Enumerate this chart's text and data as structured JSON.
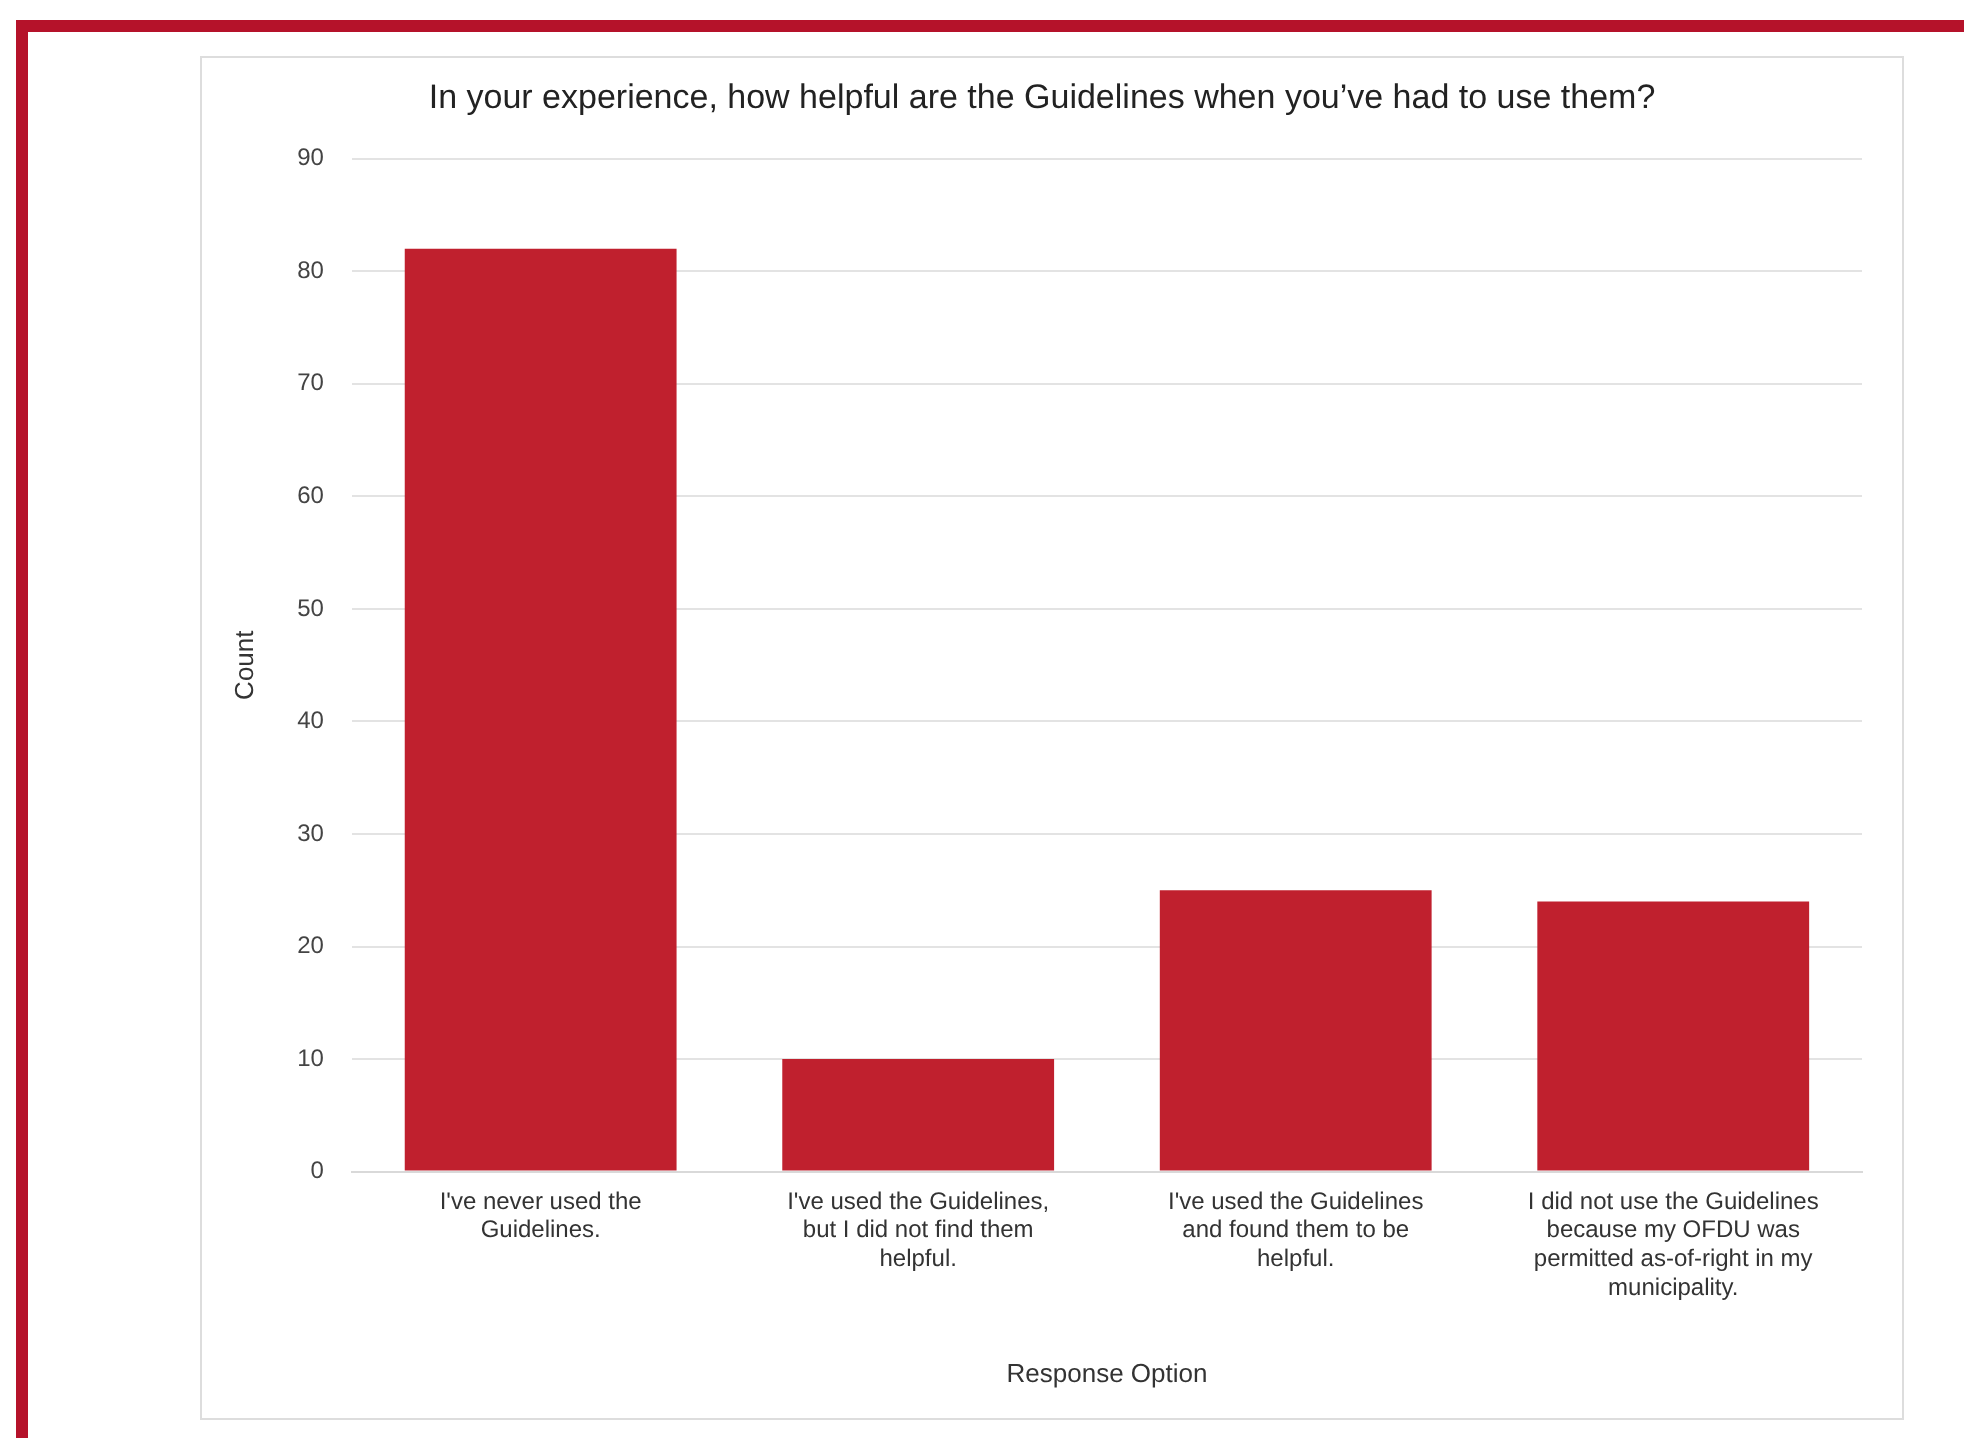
{
  "chart_data": {
    "type": "bar",
    "title": "In your experience, how helpful are the Guidelines when you’ve had to use them?",
    "xlabel": "Response Option",
    "ylabel": "Count",
    "categories": [
      "I've never used the Guidelines.",
      "I've used the Guidelines, but I did not find them helpful.",
      "I've used the Guidelines and found them to be helpful.",
      "I did not use the Guidelines because my OFDU was permitted as-of-right in my municipality."
    ],
    "values": [
      82,
      10,
      25,
      24
    ],
    "color": "#c0202e",
    "ylim": [
      0,
      90
    ],
    "yticks": [
      0,
      10,
      20,
      30,
      40,
      50,
      60,
      70,
      80,
      90
    ],
    "grid": "y"
  }
}
